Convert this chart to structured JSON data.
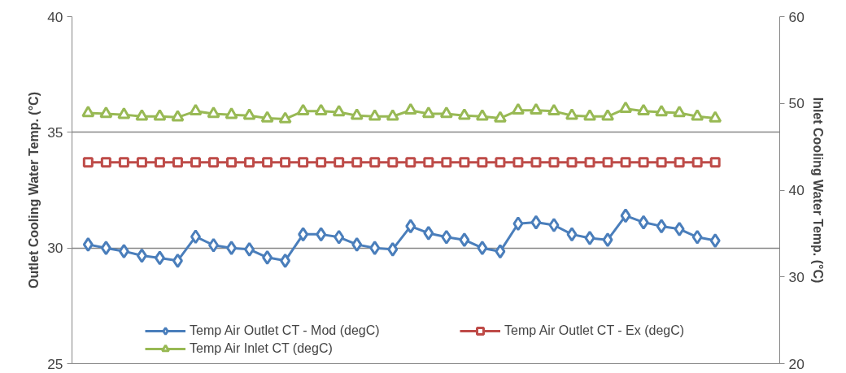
{
  "chart_data": {
    "type": "line",
    "ylabel": "Outlet Cooling Water Temp. (°C)",
    "y2label": "Inlet Cooling Water Temp. (°C)",
    "categories": [
      null,
      null,
      null,
      null,
      null,
      null,
      null,
      null,
      null,
      null,
      null,
      null,
      null,
      null,
      null,
      null,
      null,
      null,
      null,
      null,
      null,
      null,
      null,
      null,
      null,
      null,
      null,
      null,
      null,
      null,
      null,
      null,
      null,
      null,
      null,
      null
    ],
    "ylim": [
      25,
      40
    ],
    "yticks": [
      25,
      30,
      35,
      40
    ],
    "y2lim": [
      20,
      60
    ],
    "y2ticks": [
      20,
      30,
      40,
      50,
      60
    ],
    "grid": "y",
    "legend": "bottom",
    "series": [
      {
        "name": "Temp Air Outlet CT - Mod (degC)",
        "color": "#4a7ebb",
        "marker": "diamond",
        "values": [
          30.15,
          30.0,
          29.86,
          29.67,
          29.57,
          29.45,
          30.49,
          30.12,
          30.0,
          29.94,
          29.59,
          29.45,
          30.59,
          30.59,
          30.47,
          30.15,
          30.0,
          29.94,
          30.94,
          30.64,
          30.47,
          30.35,
          30.0,
          29.85,
          31.05,
          31.11,
          30.99,
          30.59,
          30.43,
          30.35,
          31.4,
          31.11,
          30.94,
          30.82,
          30.47,
          30.32
        ]
      },
      {
        "name": "Temp Air Outlet CT - Ex (degC)",
        "color": "#be4b48",
        "marker": "square",
        "values": [
          33.7,
          33.7,
          33.7,
          33.7,
          33.7,
          33.7,
          33.7,
          33.7,
          33.7,
          33.7,
          33.7,
          33.7,
          33.7,
          33.7,
          33.7,
          33.7,
          33.7,
          33.7,
          33.7,
          33.7,
          33.7,
          33.7,
          33.7,
          33.7,
          33.7,
          33.7,
          33.7,
          33.7,
          33.7,
          33.7,
          33.7,
          33.7,
          33.7,
          33.7,
          33.7,
          33.7
        ]
      },
      {
        "name": "Temp Air Inlet CT (degC)",
        "color": "#98b954",
        "marker": "triangle",
        "axis": "y2",
        "values": [
          48.9,
          48.8,
          48.7,
          48.5,
          48.5,
          48.4,
          49.1,
          48.8,
          48.7,
          48.6,
          48.3,
          48.2,
          49.1,
          49.1,
          49.0,
          48.6,
          48.5,
          48.5,
          49.2,
          48.8,
          48.8,
          48.6,
          48.5,
          48.3,
          49.2,
          49.2,
          49.1,
          48.6,
          48.5,
          48.5,
          49.4,
          49.1,
          49.0,
          48.9,
          48.5,
          48.3
        ]
      }
    ]
  }
}
